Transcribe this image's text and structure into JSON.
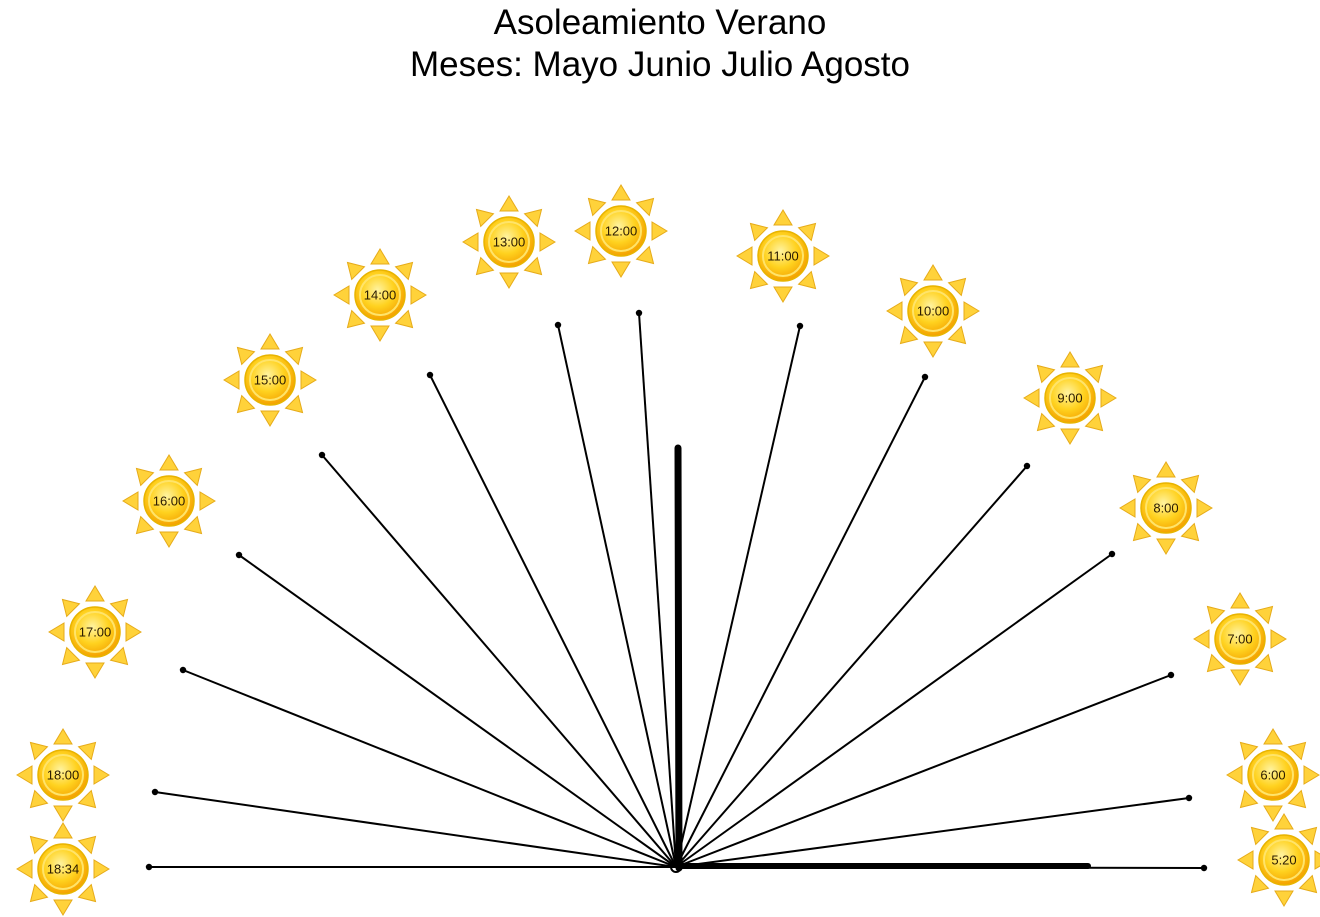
{
  "title": {
    "line1": "Asoleamiento Verano",
    "line2": "Meses: Mayo Junio Julio  Agosto"
  },
  "colors": {
    "ray": "#000000",
    "sun_core_light": "#ffe97a",
    "sun_core_dark": "#f7a400",
    "sun_ring": "#e8b400",
    "sun_rays": "#ffd23a",
    "sun_rays_stroke": "#e6ab19"
  },
  "icons": [
    "sun-icon"
  ],
  "sun_times": [
    "5:20",
    "6:00",
    "7:00",
    "8:00",
    "9:00",
    "10:00",
    "11:00",
    "12:00",
    "13:00",
    "14:00",
    "15:00",
    "16:00",
    "17:00",
    "18:00",
    "18:34"
  ]
}
